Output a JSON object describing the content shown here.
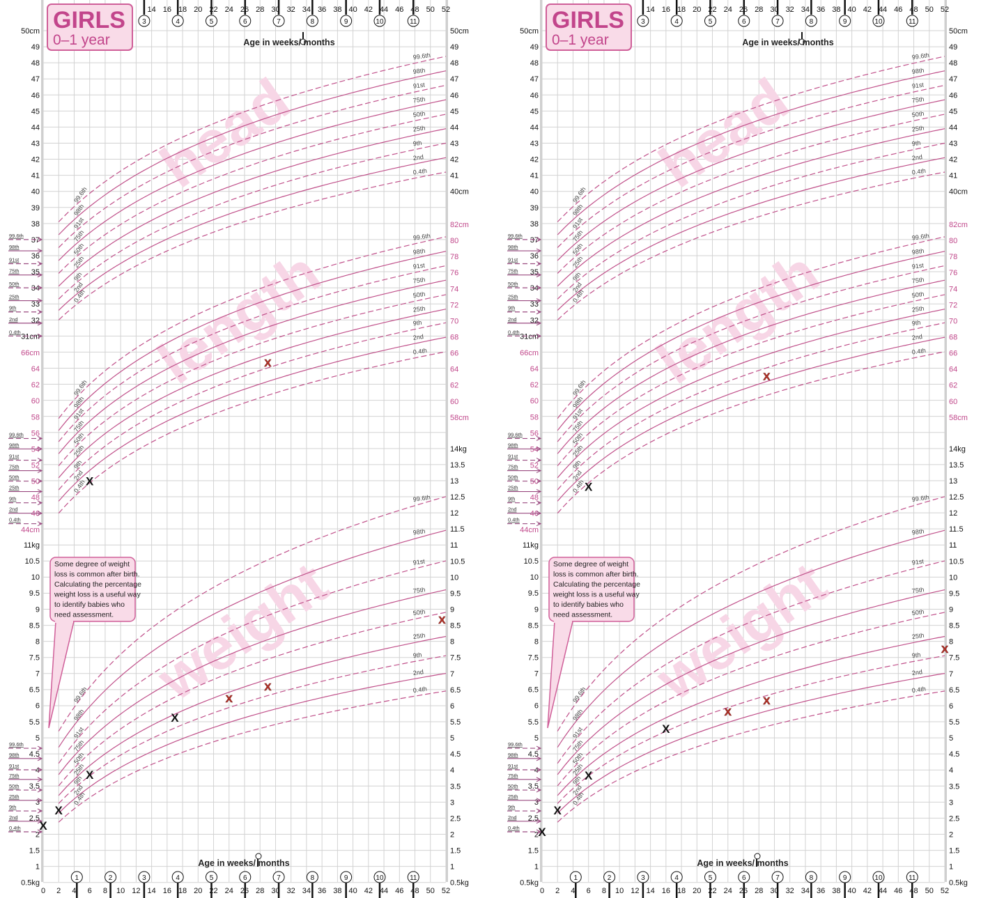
{
  "colors": {
    "curve": "#c0508a",
    "pink_label": "#c0478a",
    "grid": "#d2d2d2",
    "axis_bar": "#cfcfcf",
    "watermark": "#f7d6e6",
    "box_fill": "#f9dbe8",
    "box_border": "#cf5e98",
    "girls_text": "#c2458b",
    "marker_black": "#111111",
    "marker_red": "#c0392b"
  },
  "axes": {
    "week_ticks_top": [
      "14",
      "16",
      "18",
      "20",
      "22",
      "24",
      "26",
      "28",
      "30",
      "32",
      "34",
      "36",
      "38",
      "40",
      "42",
      "44",
      "46",
      "48",
      "50",
      "52"
    ],
    "week_ticks_bottom": [
      "0",
      "2",
      "4",
      "6",
      "8",
      "10",
      "12",
      "14",
      "16",
      "18",
      "20",
      "22",
      "24",
      "26",
      "28",
      "30",
      "32",
      "34",
      "36",
      "38",
      "40",
      "42",
      "44",
      "46",
      "48",
      "50",
      "52"
    ],
    "month_ticks_top": [
      "3",
      "4",
      "5",
      "6",
      "7",
      "8",
      "9",
      "10",
      "11"
    ],
    "month_ticks_bottom": [
      "1",
      "2",
      "3",
      "4",
      "5",
      "6",
      "7",
      "8",
      "9",
      "10",
      "11"
    ],
    "left": {
      "head": [
        "50cm",
        "49",
        "48",
        "47",
        "46",
        "45",
        "44",
        "43",
        "42",
        "41",
        "40",
        "39",
        "38",
        "37",
        "36",
        "35",
        "34",
        "33",
        "32",
        "31cm"
      ],
      "length": [
        "66cm",
        "64",
        "62",
        "60",
        "58",
        "56",
        "54",
        "52",
        "50",
        "48",
        "46",
        "44cm"
      ],
      "weight": [
        "11kg",
        "10.5",
        "10",
        "9.5",
        "9",
        "8.5",
        "8",
        "7.5",
        "7",
        "6.5",
        "6",
        "5.5",
        "5",
        "4.5",
        "4",
        "3.5",
        "3",
        "2.5",
        "2",
        "1.5",
        "1",
        "0.5kg"
      ]
    },
    "right": {
      "head": [
        "50cm",
        "49",
        "48",
        "47",
        "46",
        "45",
        "44",
        "43",
        "42",
        "41",
        "40cm"
      ],
      "length": [
        "82cm",
        "80",
        "78",
        "76",
        "74",
        "72",
        "70",
        "68",
        "66",
        "64",
        "62",
        "60",
        "58cm"
      ],
      "weight": [
        "14kg",
        "13.5",
        "13",
        "12.5",
        "12",
        "11.5",
        "11",
        "10.5",
        "10",
        "9.5",
        "9",
        "8.5",
        "8",
        "7.5",
        "7",
        "6.5",
        "6",
        "5.5",
        "5",
        "4.5",
        "4",
        "3.5",
        "3",
        "2.5",
        "2",
        "1.5",
        "1",
        "0.5kg"
      ]
    }
  },
  "reference_curves": {
    "percentiles": [
      "99.6th",
      "98th",
      "91st",
      "75th",
      "50th",
      "25th",
      "9th",
      "2nd",
      "0.4th"
    ],
    "dashed": [
      true,
      false,
      true,
      false,
      true,
      false,
      true,
      false,
      true
    ],
    "head": {
      "unit": "cm",
      "week2": [
        38.1,
        37.3,
        36.5,
        35.7,
        34.9,
        34.1,
        33.3,
        32.6,
        32.0
      ],
      "week52": [
        48.4,
        47.5,
        46.6,
        45.7,
        44.8,
        43.9,
        43.0,
        42.1,
        41.2
      ],
      "birth": [
        37.0,
        36.3,
        35.5,
        34.8,
        34.0,
        33.2,
        32.5,
        31.8,
        31.0
      ]
    },
    "length": {
      "unit": "cm",
      "week2": [
        57.8,
        56.3,
        54.9,
        53.4,
        51.9,
        50.4,
        48.9,
        47.5,
        46.0
      ],
      "week52": [
        80.4,
        78.6,
        76.8,
        75.0,
        73.2,
        71.4,
        69.7,
        67.9,
        66.1
      ],
      "birth": [
        55.3,
        54.0,
        52.6,
        51.3,
        50.0,
        48.7,
        47.3,
        46.0,
        44.7
      ]
    },
    "weight": {
      "unit": "kg",
      "week2": [
        5.2,
        4.7,
        4.2,
        3.85,
        3.5,
        3.2,
        2.95,
        2.65,
        2.37
      ],
      "week52": [
        12.5,
        11.45,
        10.5,
        9.6,
        8.9,
        8.15,
        7.55,
        7.0,
        6.45
      ],
      "birth": [
        4.67,
        4.35,
        4.0,
        3.7,
        3.37,
        3.05,
        2.72,
        2.4,
        2.07
      ]
    }
  },
  "chart_data": [
    {
      "type": "line",
      "title": "GIRLS",
      "subtitle": "0–1 year",
      "xlabel_top": "Age in weeks/ months",
      "xlabel_bottom": "Age in weeks/ months",
      "xlim": [
        0,
        52
      ],
      "watermarks": [
        "head",
        "length",
        "weight"
      ],
      "note_lines": [
        "Some degree of weight",
        "loss is common after birth.",
        "Calculating the percentage",
        "weight loss is a useful way",
        "to identify babies who",
        "need assessment."
      ],
      "measurements": {
        "length": [
          {
            "week": 6,
            "value": 50.0,
            "color": "black"
          },
          {
            "week": 29,
            "value": 64.8,
            "color": "red"
          }
        ],
        "weight": [
          {
            "week": 0,
            "value": 2.27,
            "color": "black"
          },
          {
            "week": 2,
            "value": 2.74,
            "color": "black"
          },
          {
            "week": 6,
            "value": 3.85,
            "color": "black"
          },
          {
            "week": 17,
            "value": 5.63,
            "color": "black"
          },
          {
            "week": 24,
            "value": 6.23,
            "color": "red"
          },
          {
            "week": 29,
            "value": 6.6,
            "color": "red"
          },
          {
            "week": 51.5,
            "value": 8.68,
            "color": "red"
          }
        ]
      },
      "marker": "X"
    },
    {
      "type": "line",
      "title": "GIRLS",
      "subtitle": "0–1 year",
      "xlabel_top": "Age in weeks/ months",
      "xlabel_bottom": "Age in weeks/ months",
      "xlim": [
        0,
        52
      ],
      "watermarks": [
        "head",
        "length",
        "weight"
      ],
      "note_lines": [
        "Some degree of weight",
        "loss is common after birth.",
        "Calculating the percentage",
        "weight loss is a useful way",
        "to identify babies who",
        "need assessment."
      ],
      "measurements": {
        "length": [
          {
            "week": 6,
            "value": 49.3,
            "color": "black"
          },
          {
            "week": 29,
            "value": 63.1,
            "color": "red"
          }
        ],
        "weight": [
          {
            "week": 0,
            "value": 2.07,
            "color": "black"
          },
          {
            "week": 2,
            "value": 2.74,
            "color": "black"
          },
          {
            "week": 6,
            "value": 3.83,
            "color": "black"
          },
          {
            "week": 16,
            "value": 5.28,
            "color": "black"
          },
          {
            "week": 24,
            "value": 5.82,
            "color": "red"
          },
          {
            "week": 29,
            "value": 6.17,
            "color": "red"
          },
          {
            "week": 52,
            "value": 7.77,
            "color": "red"
          }
        ]
      },
      "marker": "X"
    }
  ]
}
